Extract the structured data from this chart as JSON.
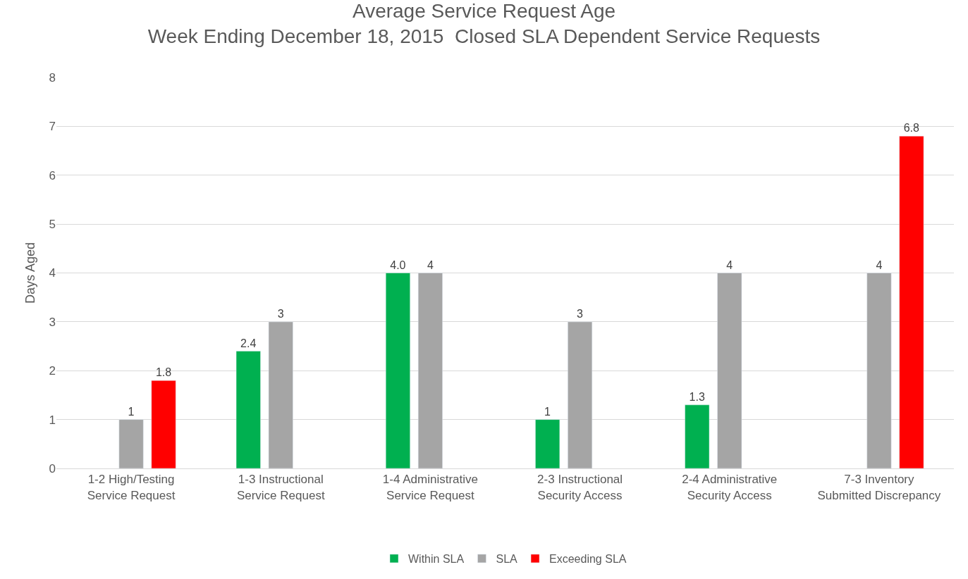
{
  "chart_data": {
    "type": "bar",
    "title": "Average Service Request Age",
    "subtitle": "Week Ending December 18, 2015  Closed SLA Dependent Service Requests",
    "ylabel": "Days Aged",
    "categories": [
      "1-2 High/Testing\nService Request",
      "1-3 Instructional\nService Request",
      "1-4 Administrative\nService Request",
      "2-3 Instructional\nSecurity Access",
      "2-4 Administrative\nSecurity Access",
      "7-3 Inventory\nSubmitted Discrepancy"
    ],
    "series": [
      {
        "name": "Within SLA",
        "color": "#00b050",
        "values": [
          null,
          2.4,
          4.0,
          1,
          1.3,
          null
        ],
        "value_labels": [
          null,
          "2.4",
          "4.0",
          "1",
          "1.3",
          null
        ]
      },
      {
        "name": "SLA",
        "color": "#a5a5a5",
        "values": [
          1,
          3,
          4,
          3,
          4,
          4
        ],
        "value_labels": [
          "1",
          "3",
          "4",
          "3",
          "4",
          "4"
        ]
      },
      {
        "name": "Exceeding SLA",
        "color": "#ff0000",
        "values": [
          1.8,
          null,
          null,
          null,
          null,
          6.8
        ],
        "value_labels": [
          "1.8",
          null,
          null,
          null,
          null,
          "6.8"
        ]
      }
    ],
    "ylim": [
      0,
      8
    ],
    "yticks": [
      0,
      1,
      2,
      3,
      4,
      5,
      6,
      7,
      8
    ],
    "grid": "y",
    "legend": "bottom"
  }
}
